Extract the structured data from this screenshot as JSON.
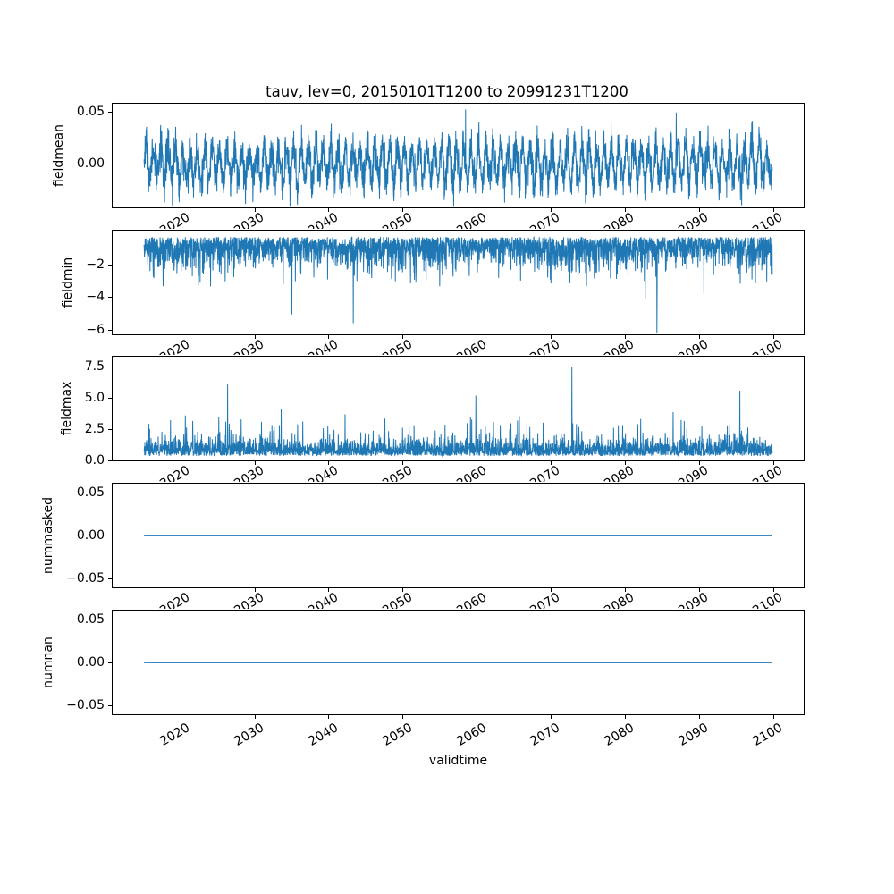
{
  "chart_data": {
    "type": "line",
    "title": "tauv, lev=0, 20150101T1200 to 20991231T1200",
    "xlabel": "validtime",
    "x_start": 2015.0,
    "x_end": 2100.0,
    "xlim": [
      2010.75,
      2104.25
    ],
    "xticks": [
      2020,
      2030,
      2040,
      2050,
      2060,
      2070,
      2080,
      2090,
      2100
    ],
    "xtick_labels": [
      "2020",
      "2030",
      "2040",
      "2050",
      "2060",
      "2070",
      "2080",
      "2090",
      "2100"
    ],
    "line_color": "#1f77b4",
    "grid": false,
    "legend": null,
    "points_per_year": 36,
    "seed": 7,
    "subplots": [
      {
        "name": "fieldmean",
        "ylabel": "fieldmean",
        "ylim": [
          -0.0425,
          0.0585
        ],
        "yticks": [
          0.05,
          0.0
        ],
        "ytick_labels": [
          "0.05",
          "0.00"
        ],
        "line_width": 1,
        "gen": {
          "kind": "seasonal",
          "amp": 0.016,
          "noise": 0.0095,
          "data_min": -0.041,
          "data_max": 0.053,
          "forced": [
            {
              "t": 2058.5,
              "v": 0.053
            },
            {
              "t": 2087.0,
              "v": 0.05
            },
            {
              "t": 2056.9,
              "v": -0.041
            }
          ]
        }
      },
      {
        "name": "fieldmin",
        "ylabel": "fieldmin",
        "ylim": [
          -6.35,
          0.12
        ],
        "yticks": [
          -2,
          -4,
          -6
        ],
        "ytick_labels": [
          "−2",
          "−4",
          "−6"
        ],
        "line_width": 1,
        "gen": {
          "kind": "one_sided",
          "sign": -1,
          "base": 0.28,
          "noise": 0.85,
          "spike_prob": 0.05,
          "spike_extra": 1.9,
          "mod_amp": 0.18,
          "mod_period": 27,
          "data_min": -6.25,
          "data_max": -0.25,
          "forced": [
            {
              "t": 2043.3,
              "v": -5.65
            },
            {
              "t": 2084.4,
              "v": -6.25
            },
            {
              "t": 2035.0,
              "v": -5.1
            }
          ]
        }
      },
      {
        "name": "fieldmax",
        "ylabel": "fieldmax",
        "ylim": [
          -0.07,
          8.36
        ],
        "yticks": [
          0.0,
          2.5,
          5.0,
          7.5
        ],
        "ytick_labels": [
          "0.0",
          "2.5",
          "5.0",
          "7.5"
        ],
        "line_width": 1,
        "gen": {
          "kind": "one_sided",
          "sign": 1,
          "base": 0.3,
          "noise": 0.65,
          "spike_prob": 0.05,
          "spike_extra": 2.4,
          "mod_amp": 0.1,
          "mod_period": 33,
          "data_min": 0.2,
          "data_max": 7.5,
          "forced": [
            {
              "t": 2026.3,
              "v": 6.1
            },
            {
              "t": 2072.9,
              "v": 7.5
            },
            {
              "t": 2095.6,
              "v": 5.6
            },
            {
              "t": 2059.9,
              "v": 5.2
            }
          ]
        }
      },
      {
        "name": "nummasked",
        "ylabel": "nummasked",
        "ylim": [
          -0.0615,
          0.0615
        ],
        "yticks": [
          0.05,
          0.0,
          -0.05
        ],
        "ytick_labels": [
          "0.05",
          "0.00",
          "−0.05"
        ],
        "line_width": 1.8,
        "gen": {
          "kind": "constant",
          "value": 0.0
        }
      },
      {
        "name": "numnan",
        "ylabel": "numnan",
        "ylim": [
          -0.0615,
          0.0615
        ],
        "yticks": [
          0.05,
          0.0,
          -0.05
        ],
        "ytick_labels": [
          "0.05",
          "0.00",
          "−0.05"
        ],
        "line_width": 1.8,
        "gen": {
          "kind": "constant",
          "value": 0.0
        }
      }
    ]
  }
}
